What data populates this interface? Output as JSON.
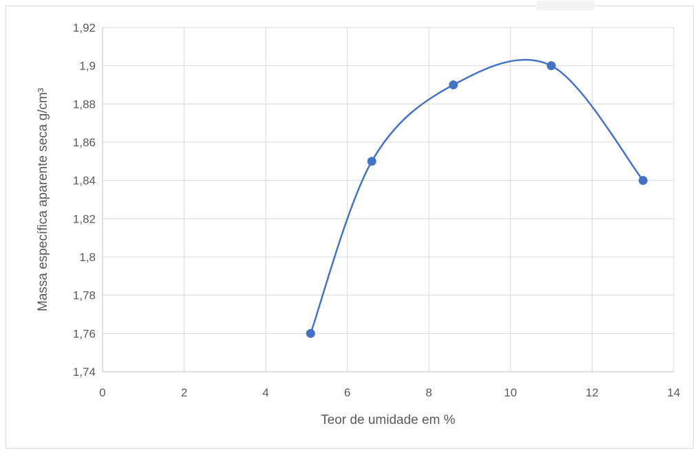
{
  "chart_data": {
    "type": "scatter",
    "smooth": true,
    "xlabel": "Teor de umidade em %",
    "ylabel": "Massa específica aparente seca g/cm³",
    "xlim": [
      0,
      14
    ],
    "ylim": [
      1.74,
      1.92
    ],
    "x_ticks": [
      "0",
      "2",
      "4",
      "6",
      "8",
      "10",
      "12",
      "14"
    ],
    "y_ticks": [
      "1,74",
      "1,76",
      "1,78",
      "1,8",
      "1,82",
      "1,84",
      "1,86",
      "1,88",
      "1,9",
      "1,92"
    ],
    "grid": true,
    "legend": "none",
    "series": [
      {
        "x": [
          5.1,
          6.6,
          8.6,
          11.0,
          13.25
        ],
        "y": [
          1.76,
          1.85,
          1.89,
          1.9,
          1.84
        ]
      }
    ],
    "colors": {
      "series": "#4472c4",
      "grid": "#d9d9d9",
      "axis": "#bfbfbf",
      "text": "#595959"
    }
  }
}
